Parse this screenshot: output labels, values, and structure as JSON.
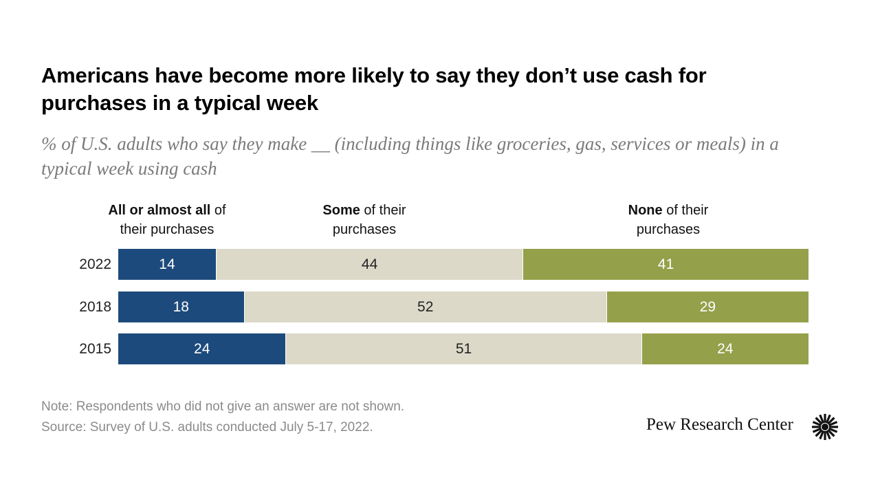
{
  "title": "Americans have become more likely to say they don’t use cash for purchases in a typical week",
  "subtitle": "% of U.S. adults who say they make __ (including things like groceries, gas, services or meals) in a typical week using cash",
  "chart_data": {
    "type": "bar",
    "orientation": "horizontal-stacked",
    "categories": [
      "2022",
      "2018",
      "2015"
    ],
    "series": [
      {
        "name": "All or almost all of their purchases",
        "bold": "All or almost all",
        "rest1": " of",
        "rest2": "their purchases",
        "color": "#1d4a7c",
        "text_color": "#ffffff",
        "values": [
          14,
          18,
          24
        ]
      },
      {
        "name": "Some of their purchases",
        "bold": "Some",
        "rest1": " of their",
        "rest2": "purchases",
        "color": "#dcd9c9",
        "text_color": "#222222",
        "values": [
          44,
          52,
          51
        ]
      },
      {
        "name": "None of their purchases",
        "bold": "None",
        "rest1": " of their",
        "rest2": "purchases",
        "color": "#95a04b",
        "text_color": "#ffffff",
        "values": [
          41,
          29,
          24
        ]
      }
    ],
    "xlim": [
      0,
      99
    ]
  },
  "note": "Note: Respondents who did not give an answer are not shown.",
  "source": "Source: Survey of U.S. adults conducted July 5-17, 2022.",
  "logo_text": "Pew Research Center"
}
